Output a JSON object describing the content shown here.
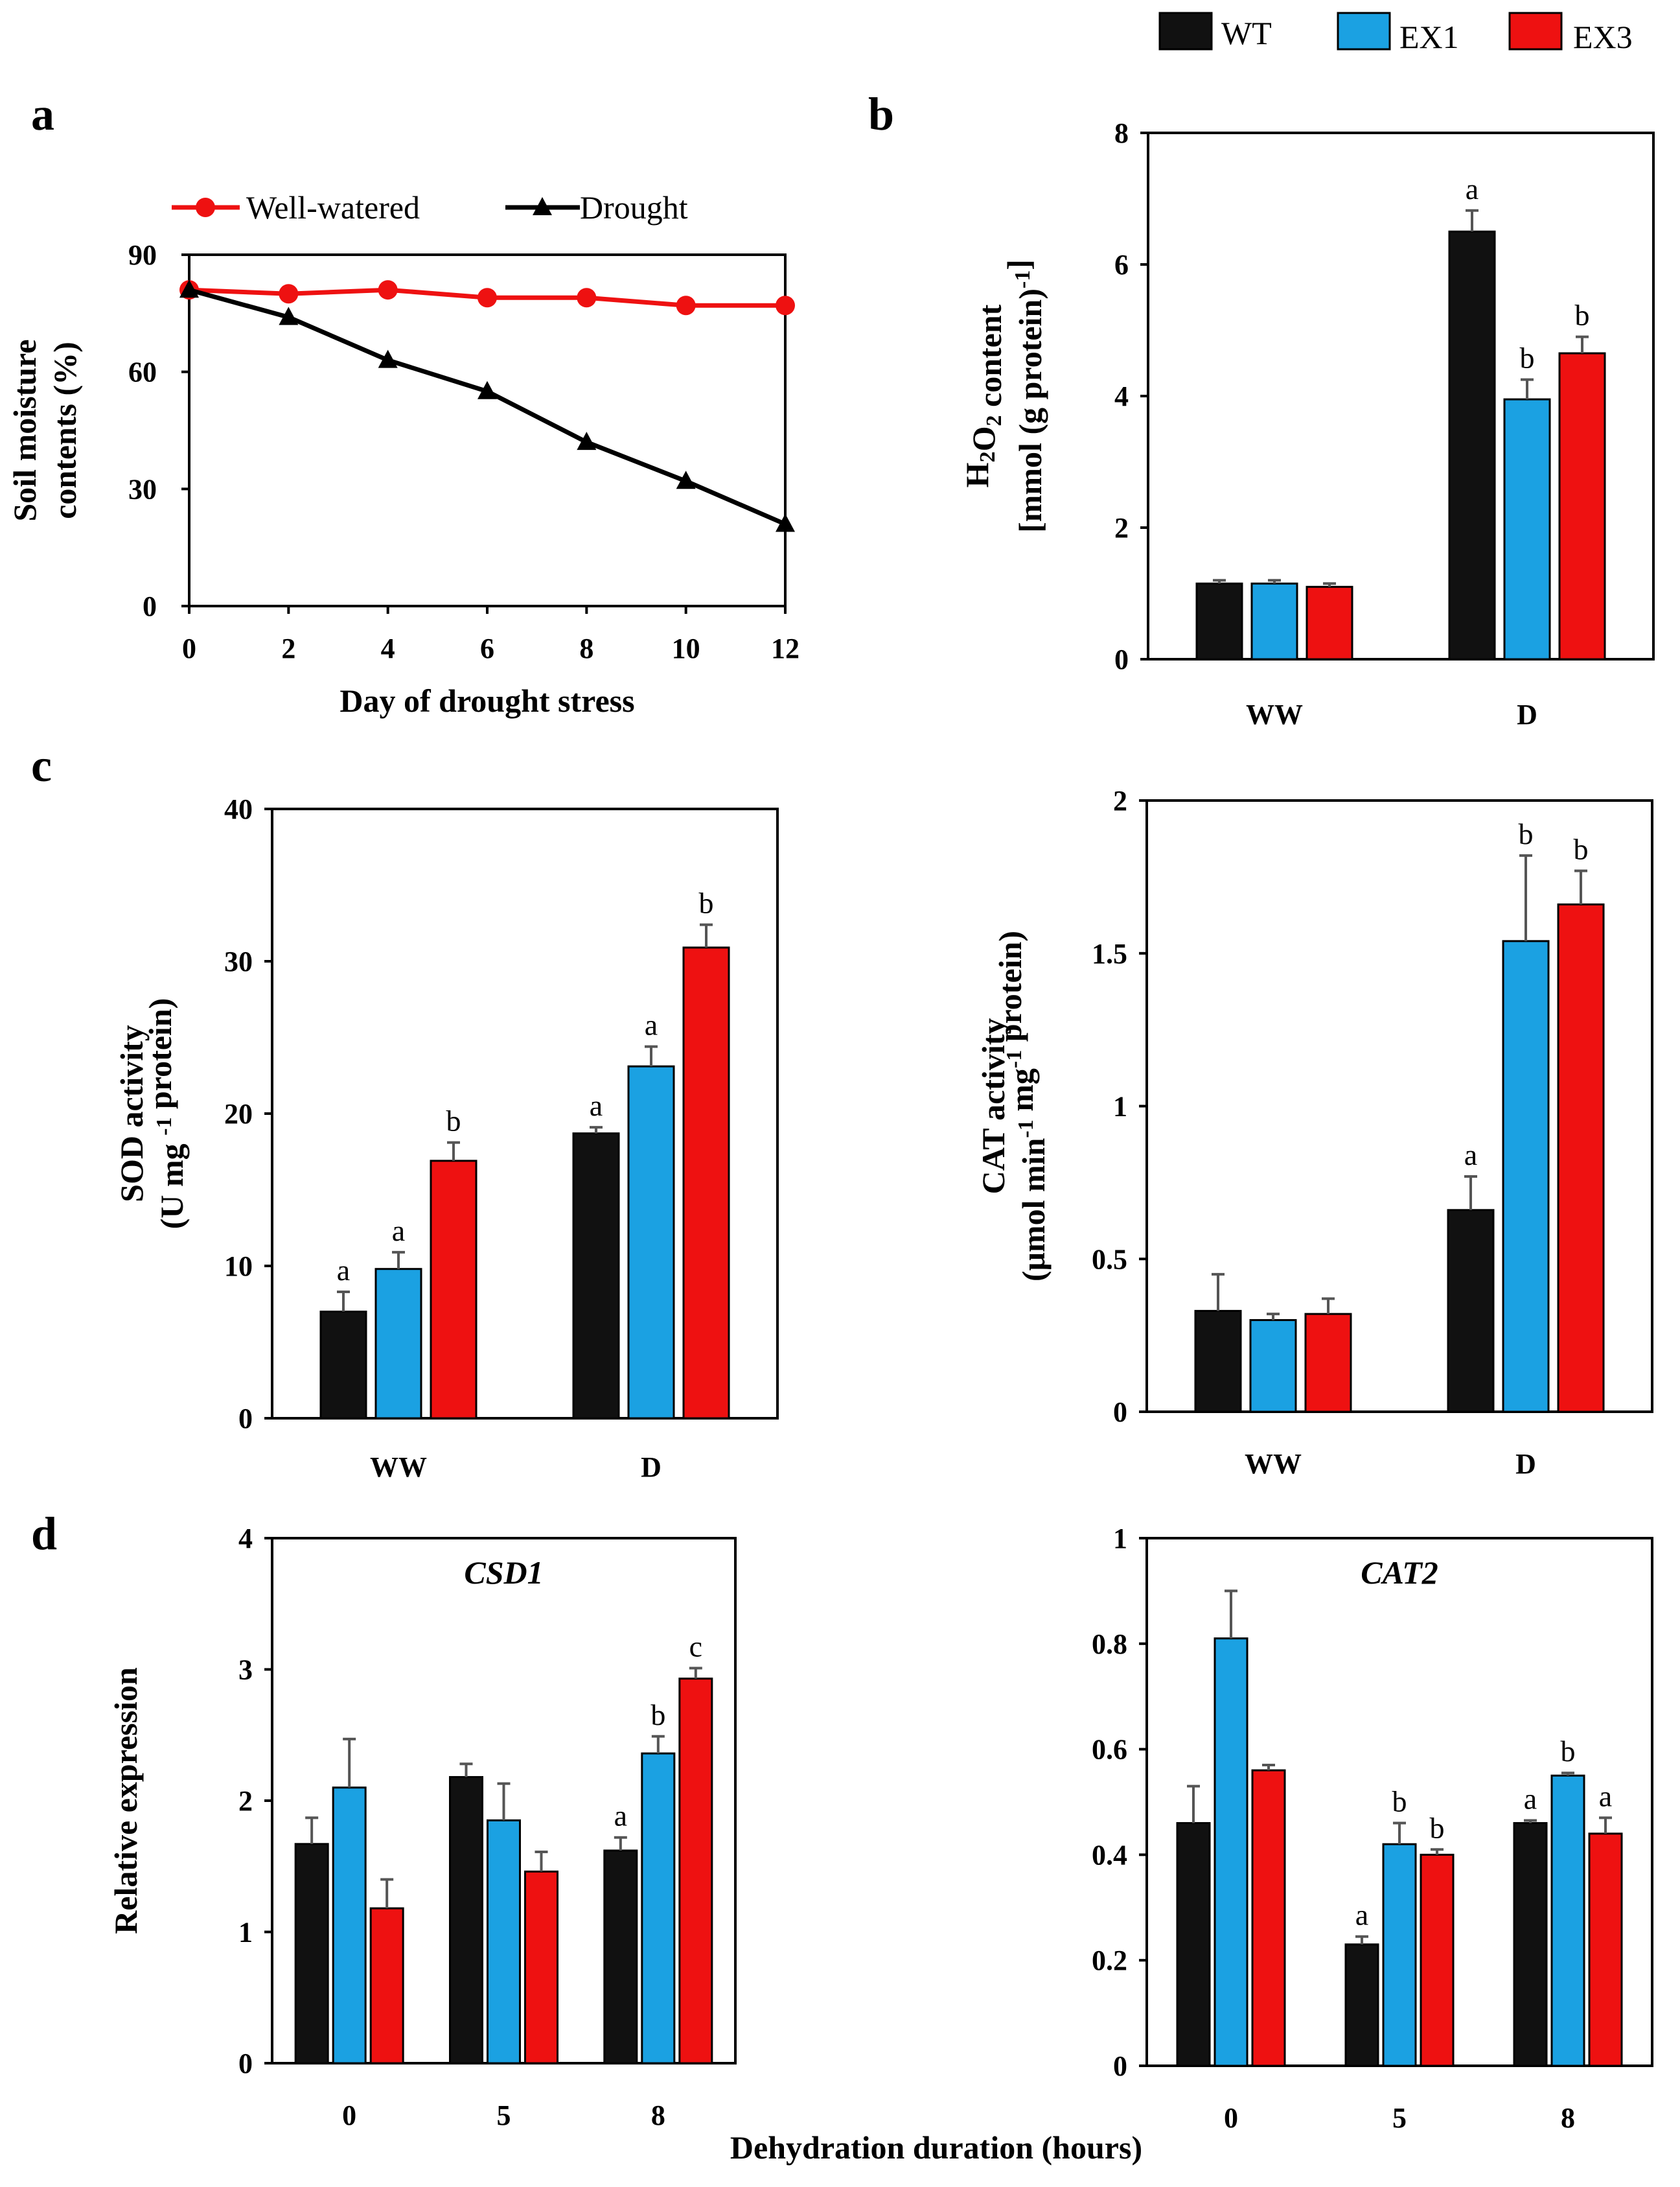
{
  "colors": {
    "WT": "#111111",
    "EX1": "#1ba1e2",
    "EX3": "#ee1111",
    "well_watered": "#ee1111",
    "drought": "#000000",
    "error_bar": "#555555"
  },
  "legend": {
    "labels": [
      "WT",
      "EX1",
      "EX3"
    ]
  },
  "panels": {
    "a": "a",
    "b": "b",
    "c": "c",
    "d": "d"
  },
  "shared_xlabel": "Dehydration duration (hours)",
  "chart_data": [
    {
      "id": "a",
      "type": "line",
      "title": "",
      "xlabel": "Day of drought stress",
      "ylabel_lines": [
        "Soil moisture",
        "contents (%)"
      ],
      "x": [
        0,
        2,
        4,
        6,
        8,
        10,
        12
      ],
      "xticks": [
        "0",
        "2",
        "4",
        "6",
        "8",
        "10",
        "12"
      ],
      "yticks": [
        "0",
        "30",
        "60",
        "90"
      ],
      "ylim": [
        0,
        90
      ],
      "xlim": [
        0,
        12
      ],
      "series": [
        {
          "name": "Well-watered",
          "marker": "circle",
          "values": [
            81,
            80,
            81,
            79,
            79,
            77,
            77
          ]
        },
        {
          "name": "Drought",
          "marker": "triangle",
          "values": [
            81,
            74,
            63,
            55,
            42,
            32,
            21
          ]
        }
      ]
    },
    {
      "id": "b",
      "type": "bar",
      "ylabel_lines": [
        "H2O2 content",
        "[mmol (g protein)-1]"
      ],
      "categories": [
        "WW",
        "D"
      ],
      "yticks": [
        "0",
        "2",
        "4",
        "6",
        "8"
      ],
      "ylim": [
        0,
        8
      ],
      "series": [
        {
          "name": "WT",
          "values": [
            1.15,
            6.5
          ],
          "errors": [
            0.05,
            0.32
          ],
          "letters": [
            "",
            "a"
          ]
        },
        {
          "name": "EX1",
          "values": [
            1.15,
            3.95
          ],
          "errors": [
            0.05,
            0.3
          ],
          "letters": [
            "",
            "b"
          ]
        },
        {
          "name": "EX3",
          "values": [
            1.1,
            4.65
          ],
          "errors": [
            0.05,
            0.25
          ],
          "letters": [
            "",
            "b"
          ]
        }
      ]
    },
    {
      "id": "c1",
      "type": "bar",
      "ylabel_lines": [
        "SOD activity",
        "(U mg -1 protein)"
      ],
      "categories": [
        "WW",
        "D"
      ],
      "yticks": [
        "0",
        "10",
        "20",
        "30",
        "40"
      ],
      "ylim": [
        0,
        40
      ],
      "series": [
        {
          "name": "WT",
          "values": [
            7.0,
            18.7
          ],
          "errors": [
            1.3,
            0.4
          ],
          "letters": [
            "a",
            "a"
          ]
        },
        {
          "name": "EX1",
          "values": [
            9.8,
            23.1
          ],
          "errors": [
            1.1,
            1.3
          ],
          "letters": [
            "a",
            "a"
          ]
        },
        {
          "name": "EX3",
          "values": [
            16.9,
            30.9
          ],
          "errors": [
            1.2,
            1.5
          ],
          "letters": [
            "b",
            "b"
          ]
        }
      ]
    },
    {
      "id": "c2",
      "type": "bar",
      "ylabel_lines": [
        "CAT activity",
        "(μmol min-1 mg-1 protein)"
      ],
      "categories": [
        "WW",
        "D"
      ],
      "yticks": [
        "0",
        "0.5",
        "1",
        "1.5",
        "2"
      ],
      "ylim": [
        0,
        2
      ],
      "series": [
        {
          "name": "WT",
          "values": [
            0.33,
            0.66
          ],
          "errors": [
            0.12,
            0.11
          ],
          "letters": [
            "",
            "a"
          ]
        },
        {
          "name": "EX1",
          "values": [
            0.3,
            1.54
          ],
          "errors": [
            0.02,
            0.28
          ],
          "letters": [
            "",
            "b"
          ]
        },
        {
          "name": "EX3",
          "values": [
            0.32,
            1.66
          ],
          "errors": [
            0.05,
            0.11
          ],
          "letters": [
            "",
            "b"
          ]
        }
      ]
    },
    {
      "id": "d1",
      "type": "bar",
      "title": "CSD1",
      "ylabel_lines": [
        "Relative expression"
      ],
      "categories": [
        "0",
        "5",
        "8"
      ],
      "yticks": [
        "0",
        "1",
        "2",
        "3",
        "4"
      ],
      "ylim": [
        0,
        4
      ],
      "series": [
        {
          "name": "WT",
          "values": [
            1.67,
            2.18,
            1.62
          ],
          "errors": [
            0.2,
            0.1,
            0.1
          ],
          "letters": [
            "",
            "",
            "a"
          ]
        },
        {
          "name": "EX1",
          "values": [
            2.1,
            1.85,
            2.36
          ],
          "errors": [
            0.37,
            0.28,
            0.13
          ],
          "letters": [
            "",
            "",
            "b"
          ]
        },
        {
          "name": "EX3",
          "values": [
            1.18,
            1.46,
            2.93
          ],
          "errors": [
            0.22,
            0.15,
            0.08
          ],
          "letters": [
            "",
            "",
            "c"
          ]
        }
      ]
    },
    {
      "id": "d2",
      "type": "bar",
      "title": "CAT2",
      "categories": [
        "0",
        "5",
        "8"
      ],
      "yticks": [
        "0",
        "0.2",
        "0.4",
        "0.6",
        "0.8",
        "1"
      ],
      "ylim": [
        0,
        1
      ],
      "series": [
        {
          "name": "WT",
          "values": [
            0.46,
            0.23,
            0.46
          ],
          "errors": [
            0.07,
            0.015,
            0.005
          ],
          "letters": [
            "",
            "a",
            "a"
          ]
        },
        {
          "name": "EX1",
          "values": [
            0.81,
            0.42,
            0.55
          ],
          "errors": [
            0.09,
            0.04,
            0.005
          ],
          "letters": [
            "",
            "b",
            "b"
          ]
        },
        {
          "name": "EX3",
          "values": [
            0.56,
            0.4,
            0.44
          ],
          "errors": [
            0.01,
            0.01,
            0.03
          ],
          "letters": [
            "",
            "b",
            "a"
          ]
        }
      ]
    }
  ]
}
